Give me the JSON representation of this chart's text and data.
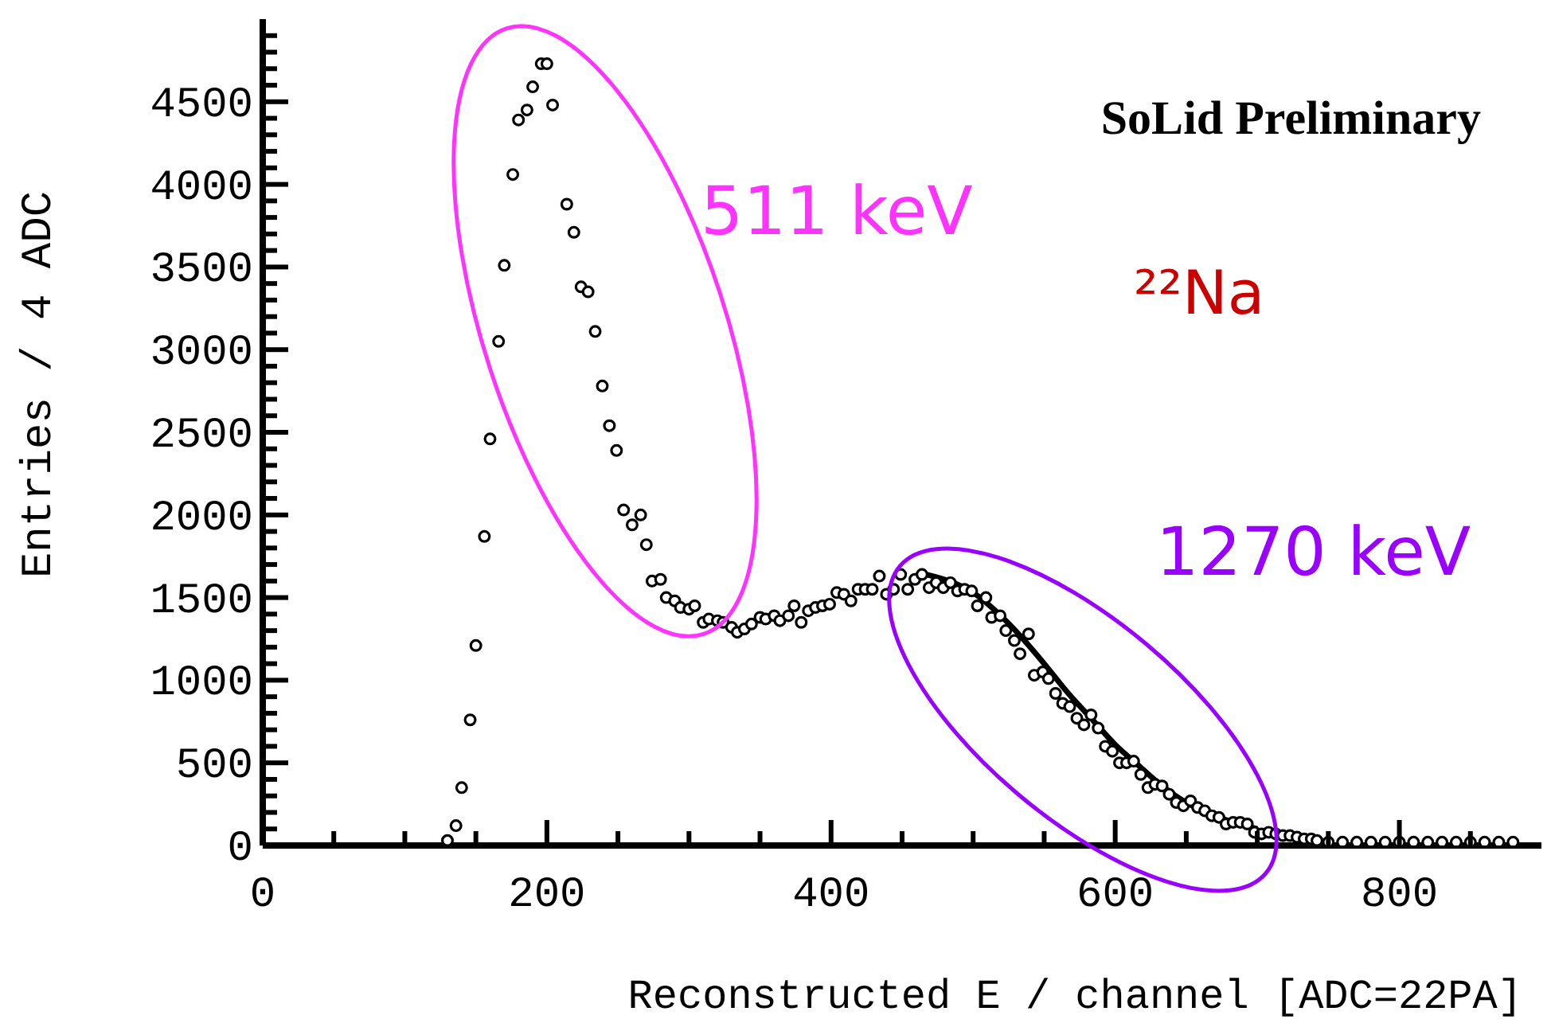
{
  "chart_data": {
    "type": "scatter",
    "title": "SoLid Preliminary",
    "xlabel": "Reconstructed E / channel [ADC=22PA]",
    "ylabel": "Entries / 4 ADC",
    "annotations": [
      "511 keV",
      "²²Na",
      "1270 keV"
    ],
    "xlim": [
      0,
      900
    ],
    "ylim": [
      0,
      5000
    ],
    "xticks": [
      0,
      {
        "value": 50,
        "label": null
      },
      {
        "value": 100,
        "label": null
      },
      {
        "value": 150,
        "label": null
      },
      200,
      {
        "value": 250,
        "label": null
      },
      {
        "value": 300,
        "label": null
      },
      {
        "value": 350,
        "label": null
      },
      400,
      {
        "value": 450,
        "label": null
      },
      {
        "value": 500,
        "label": null
      },
      {
        "value": 550,
        "label": null
      },
      600,
      {
        "value": 650,
        "label": null
      },
      {
        "value": 700,
        "label": null
      },
      {
        "value": 750,
        "label": null
      },
      800,
      {
        "value": 850,
        "label": null
      }
    ],
    "yticks": [
      0,
      {
        "value": 100,
        "label": null
      },
      {
        "value": 200,
        "label": null
      },
      {
        "value": 300,
        "label": null
      },
      {
        "value": 400,
        "label": null
      },
      500,
      {
        "value": 600,
        "label": null
      },
      {
        "value": 700,
        "label": null
      },
      {
        "value": 800,
        "label": null
      },
      {
        "value": 900,
        "label": null
      },
      1000,
      {
        "value": 1100,
        "label": null
      },
      {
        "value": 1200,
        "label": null
      },
      {
        "value": 1300,
        "label": null
      },
      {
        "value": 1400,
        "label": null
      },
      1500,
      {
        "value": 1600,
        "label": null
      },
      {
        "value": 1700,
        "label": null
      },
      {
        "value": 1800,
        "label": null
      },
      {
        "value": 1900,
        "label": null
      },
      2000,
      {
        "value": 2100,
        "label": null
      },
      {
        "value": 2200,
        "label": null
      },
      {
        "value": 2300,
        "label": null
      },
      {
        "value": 2400,
        "label": null
      },
      2500,
      {
        "value": 2600,
        "label": null
      },
      {
        "value": 2700,
        "label": null
      },
      {
        "value": 2800,
        "label": null
      },
      {
        "value": 2900,
        "label": null
      },
      3000,
      {
        "value": 3100,
        "label": null
      },
      {
        "value": 3200,
        "label": null
      },
      {
        "value": 3300,
        "label": null
      },
      {
        "value": 3400,
        "label": null
      },
      3500,
      {
        "value": 3600,
        "label": null
      },
      {
        "value": 3700,
        "label": null
      },
      {
        "value": 3800,
        "label": null
      },
      {
        "value": 3900,
        "label": null
      },
      4000,
      {
        "value": 4100,
        "label": null
      },
      {
        "value": 4200,
        "label": null
      },
      {
        "value": 4300,
        "label": null
      },
      {
        "value": 4400,
        "label": null
      },
      4500,
      {
        "value": 4600,
        "label": null
      },
      {
        "value": 4700,
        "label": null
      },
      {
        "value": 4800,
        "label": null
      },
      {
        "value": 4900,
        "label": null
      }
    ],
    "series": [
      {
        "type": "scatter",
        "marker": "circle",
        "color": "#000000",
        "x": [
          130,
          136,
          140,
          146,
          150,
          156,
          160,
          166,
          170,
          176,
          180,
          186,
          190,
          196,
          200,
          204,
          214,
          219,
          224,
          229,
          234,
          239,
          244,
          249,
          254,
          260,
          266,
          270,
          274,
          280,
          284,
          290,
          294,
          300,
          304,
          310,
          314,
          320,
          324,
          330,
          334,
          339,
          344,
          350,
          354,
          360,
          364,
          370,
          374,
          379,
          384,
          389,
          394,
          399,
          404,
          409,
          414,
          419,
          424,
          429,
          434,
          439,
          444,
          449,
          454,
          459,
          464,
          469,
          474,
          479,
          484,
          489,
          494,
          499,
          503,
          509,
          513,
          519,
          523,
          529,
          533,
          539,
          543,
          549,
          553,
          558,
          563,
          568,
          573,
          578,
          583,
          588,
          593,
          598,
          603,
          608,
          613,
          618,
          623,
          628,
          633,
          638,
          643,
          648,
          653,
          658,
          663,
          668,
          673,
          678,
          683,
          688,
          693,
          698,
          703,
          708,
          713,
          718,
          723,
          728,
          733,
          738,
          742,
          750,
          760,
          770,
          780,
          790,
          800,
          810,
          820,
          830,
          840,
          850,
          860,
          870,
          880
        ],
        "values": [
          30,
          120,
          350,
          760,
          1210,
          1870,
          2460,
          3050,
          3510,
          4060,
          4390,
          4450,
          4590,
          4730,
          4730,
          4480,
          3880,
          3710,
          3380,
          3350,
          3110,
          2780,
          2540,
          2390,
          2030,
          1940,
          2000,
          1820,
          1600,
          1610,
          1500,
          1480,
          1440,
          1430,
          1450,
          1350,
          1370,
          1360,
          1350,
          1320,
          1290,
          1310,
          1340,
          1380,
          1370,
          1390,
          1360,
          1390,
          1450,
          1350,
          1420,
          1440,
          1450,
          1460,
          1530,
          1520,
          1480,
          1550,
          1550,
          1550,
          1630,
          1520,
          1550,
          1640,
          1550,
          1610,
          1640,
          1560,
          1590,
          1560,
          1590,
          1540,
          1550,
          1540,
          1450,
          1500,
          1380,
          1390,
          1300,
          1240,
          1160,
          1280,
          1030,
          1050,
          1010,
          920,
          860,
          840,
          770,
          730,
          790,
          710,
          600,
          570,
          500,
          500,
          510,
          430,
          350,
          370,
          360,
          310,
          260,
          240,
          270,
          230,
          210,
          180,
          170,
          130,
          140,
          140,
          130,
          80,
          70,
          80,
          70,
          60,
          60,
          50,
          40,
          40,
          30,
          20,
          20,
          20,
          20,
          20,
          20,
          20,
          20,
          20,
          20,
          20,
          20,
          20,
          20
        ]
      },
      {
        "type": "line",
        "color": "#000000",
        "x": [
          467,
          483,
          500,
          517,
          533,
          550,
          567,
          583,
          600,
          617,
          633,
          650,
          667,
          683,
          700
        ],
        "values": [
          1640,
          1600,
          1530,
          1410,
          1270,
          1100,
          920,
          770,
          610,
          480,
          360,
          260,
          190,
          140,
          100
        ]
      }
    ]
  }
}
